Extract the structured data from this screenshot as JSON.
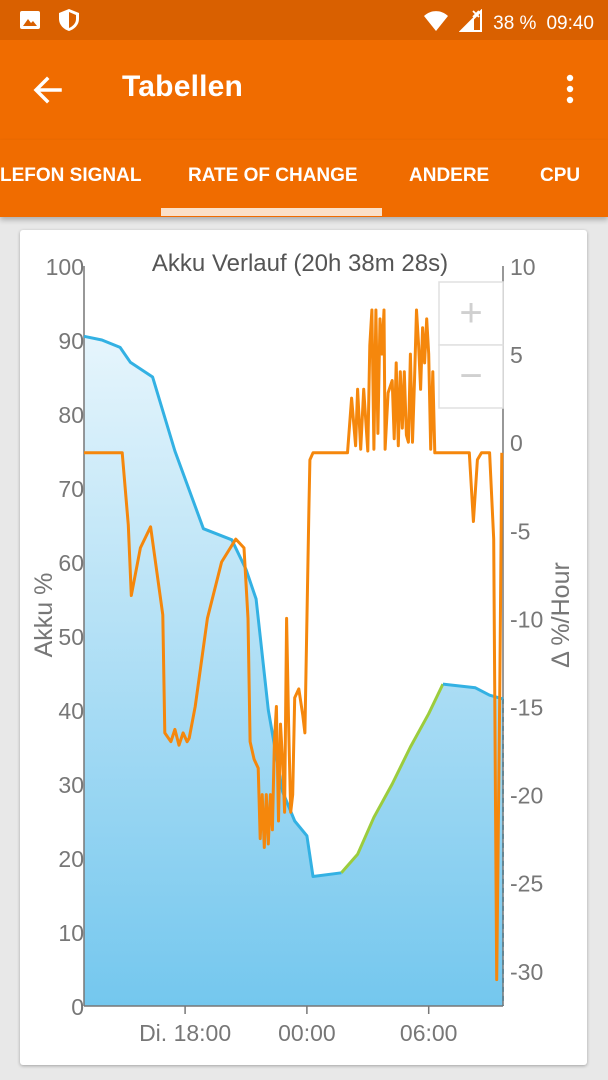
{
  "status_bar": {
    "icons": [
      "image-icon",
      "shield-icon",
      "wifi-icon",
      "signal-icon"
    ],
    "battery": "38 %",
    "time": "09:40"
  },
  "app_bar": {
    "title": "Tabellen",
    "back_icon": "arrow-left-icon",
    "menu_icon": "more-vertical-icon"
  },
  "tabs": [
    {
      "label": "LEFON SIGNAL",
      "active": false
    },
    {
      "label": "RATE OF CHANGE",
      "active": true
    },
    {
      "label": "ANDERE",
      "active": false
    },
    {
      "label": "CPU",
      "active": false
    }
  ],
  "zoom": {
    "in_label": "+",
    "out_label": "−"
  },
  "colors": {
    "brand": "#f06c00",
    "status": "#d96000",
    "battery_line": "#33b1e3",
    "charging_line": "#9ccc3d",
    "rate_line": "#f5870c"
  },
  "chart_data": {
    "type": "area",
    "title": "Akku Verlauf (20h 38m 28s)",
    "ylabel": "Akku %",
    "y2label": "Δ %/Hour",
    "ylim": [
      0,
      100
    ],
    "y2lim": [
      -32,
      10
    ],
    "yticks": [
      "0",
      "10",
      "20",
      "30",
      "40",
      "50",
      "60",
      "70",
      "80",
      "90",
      "100"
    ],
    "y2ticks": [
      "-30",
      "-25",
      "-20",
      "-15",
      "-10",
      "-5",
      "0",
      "5",
      "10"
    ],
    "xticks": [
      {
        "label": "Di. 18:00",
        "hour": 18
      },
      {
        "label": "00:00",
        "hour": 24
      },
      {
        "label": "06:00",
        "hour": 30
      }
    ],
    "xlim_hours": [
      13.02,
      33.66
    ],
    "series": [
      {
        "type": "area",
        "segments": [
          {
            "role": "discharging",
            "points": [
              [
                13.02,
                90.5
              ],
              [
                13.9,
                90
              ],
              [
                14.8,
                89
              ],
              [
                15.3,
                87
              ],
              [
                16.4,
                85
              ],
              [
                17.5,
                75
              ],
              [
                18.9,
                64.5
              ],
              [
                20.3,
                63
              ],
              [
                21.0,
                59
              ],
              [
                21.5,
                55
              ],
              [
                22.1,
                40
              ],
              [
                22.8,
                29
              ],
              [
                23.4,
                25
              ],
              [
                24.0,
                23
              ],
              [
                24.3,
                17.5
              ],
              [
                25.7,
                18
              ]
            ]
          },
          {
            "role": "charging",
            "points": [
              [
                25.7,
                18
              ],
              [
                26.5,
                20.5
              ],
              [
                27.3,
                25.5
              ],
              [
                28.2,
                30
              ],
              [
                29.1,
                35
              ],
              [
                30.0,
                39.5
              ],
              [
                30.7,
                43.5
              ]
            ]
          },
          {
            "role": "discharging",
            "points": [
              [
                30.7,
                43.5
              ],
              [
                32.3,
                43
              ],
              [
                33.0,
                42
              ],
              [
                33.66,
                41.5
              ]
            ]
          }
        ]
      },
      {
        "type": "line",
        "axis": "right",
        "points": [
          [
            13.02,
            -0.6
          ],
          [
            14.9,
            -0.6
          ],
          [
            15.2,
            -4.7
          ],
          [
            15.35,
            -8.7
          ],
          [
            15.8,
            -6.0
          ],
          [
            16.3,
            -4.8
          ],
          [
            16.9,
            -9.8
          ],
          [
            17.0,
            -16.5
          ],
          [
            17.3,
            -17.0
          ],
          [
            17.5,
            -16.3
          ],
          [
            17.7,
            -17.2
          ],
          [
            17.9,
            -16.5
          ],
          [
            18.1,
            -17.0
          ],
          [
            18.2,
            -16.8
          ],
          [
            18.5,
            -15.0
          ],
          [
            19.1,
            -10.0
          ],
          [
            19.8,
            -6.8
          ],
          [
            20.5,
            -5.5
          ],
          [
            20.9,
            -6.0
          ],
          [
            21.1,
            -10.0
          ],
          [
            21.2,
            -17.0
          ],
          [
            21.4,
            -18.0
          ],
          [
            21.6,
            -18.5
          ],
          [
            21.7,
            -22.5
          ],
          [
            21.8,
            -20.0
          ],
          [
            21.9,
            -23.0
          ],
          [
            22.0,
            -20.0
          ],
          [
            22.1,
            -22.8
          ],
          [
            22.2,
            -20.0
          ],
          [
            22.3,
            -22.0
          ],
          [
            22.4,
            -17.0
          ],
          [
            22.5,
            -15.0
          ],
          [
            22.6,
            -21.5
          ],
          [
            22.7,
            -16.0
          ],
          [
            22.8,
            -18.0
          ],
          [
            22.9,
            -21.0
          ],
          [
            23.0,
            -10.0
          ],
          [
            23.1,
            -16.0
          ],
          [
            23.2,
            -21.0
          ],
          [
            23.3,
            -20.0
          ],
          [
            23.4,
            -14.5
          ],
          [
            23.6,
            -14.0
          ],
          [
            23.8,
            -15.5
          ],
          [
            23.9,
            -16.5
          ],
          [
            24.1,
            -3.8
          ],
          [
            24.15,
            -1.0
          ],
          [
            24.3,
            -0.6
          ],
          [
            26.0,
            -0.6
          ],
          [
            26.2,
            2.5
          ],
          [
            26.4,
            -0.2
          ],
          [
            26.5,
            3.0
          ],
          [
            26.65,
            -0.4
          ],
          [
            26.8,
            3.0
          ],
          [
            27.0,
            -0.5
          ],
          [
            27.1,
            5.5
          ],
          [
            27.2,
            7.5
          ],
          [
            27.3,
            -0.4
          ],
          [
            27.4,
            7.5
          ],
          [
            27.5,
            0.5
          ],
          [
            27.6,
            7.0
          ],
          [
            27.7,
            5.0
          ],
          [
            27.8,
            7.5
          ],
          [
            27.85,
            -0.4
          ],
          [
            28.0,
            2.8
          ],
          [
            28.2,
            3.5
          ],
          [
            28.3,
            0.2
          ],
          [
            28.4,
            4.5
          ],
          [
            28.5,
            -0.2
          ],
          [
            28.6,
            4.0
          ],
          [
            28.7,
            0.8
          ],
          [
            28.8,
            4.0
          ],
          [
            28.9,
            0.4
          ],
          [
            29.0,
            0.0
          ],
          [
            29.1,
            5.0
          ],
          [
            29.2,
            0.0
          ],
          [
            29.3,
            3.5
          ],
          [
            29.4,
            7.5
          ],
          [
            29.5,
            5.5
          ],
          [
            29.6,
            3.0
          ],
          [
            29.7,
            6.5
          ],
          [
            29.8,
            4.5
          ],
          [
            29.9,
            7.0
          ],
          [
            30.0,
            5.0
          ],
          [
            30.1,
            -0.4
          ],
          [
            30.2,
            4.0
          ],
          [
            30.3,
            -0.6
          ],
          [
            32.0,
            -0.6
          ],
          [
            32.2,
            -4.5
          ],
          [
            32.4,
            -1.0
          ],
          [
            32.6,
            -0.6
          ],
          [
            33.0,
            -0.6
          ],
          [
            33.2,
            -5.5
          ],
          [
            33.35,
            -30.5
          ],
          [
            33.5,
            -14.0
          ],
          [
            33.6,
            -0.6
          ]
        ]
      }
    ]
  }
}
